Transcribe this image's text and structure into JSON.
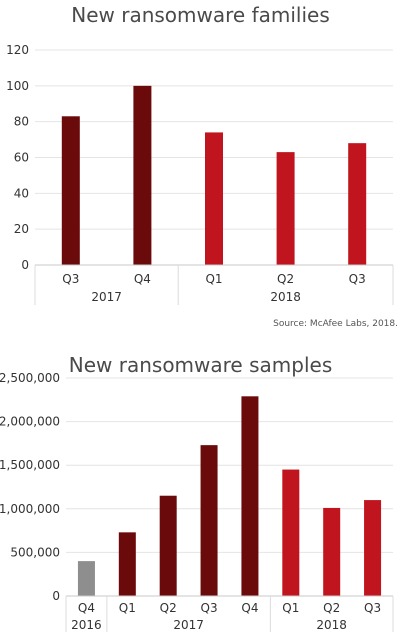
{
  "chart_data": [
    {
      "type": "bar",
      "title": "New ransomware families",
      "xlabel": "",
      "ylabel": "",
      "ylim": [
        0,
        120
      ],
      "yticks": [
        0,
        20,
        40,
        60,
        80,
        100,
        120
      ],
      "grid": true,
      "categories": [
        "Q3",
        "Q4",
        "Q1",
        "Q2",
        "Q3"
      ],
      "years": [
        "2017",
        "2017",
        "2018",
        "2018",
        "2018"
      ],
      "year_groups": [
        {
          "label": "2017",
          "count": 2
        },
        {
          "label": "2018",
          "count": 3
        }
      ],
      "values": [
        83,
        100,
        74,
        63,
        68
      ],
      "colors": [
        "#6b0a0a",
        "#6b0a0a",
        "#c0141e",
        "#c0141e",
        "#c0141e"
      ],
      "source": "Source: McAfee Labs, 2018."
    },
    {
      "type": "bar",
      "title": "New ransomware samples",
      "xlabel": "",
      "ylabel": "",
      "ylim": [
        0,
        2500000
      ],
      "yticks": [
        0,
        500000,
        1000000,
        1500000,
        2000000,
        2500000
      ],
      "ytick_labels": [
        "0",
        "500,000",
        "1,000,000",
        "1,500,000",
        "2,000,000",
        "2,500,000"
      ],
      "grid": true,
      "categories": [
        "Q4",
        "Q1",
        "Q2",
        "Q3",
        "Q4",
        "Q1",
        "Q2",
        "Q3"
      ],
      "years": [
        "2016",
        "2017",
        "2017",
        "2017",
        "2017",
        "2018",
        "2018",
        "2018"
      ],
      "year_groups": [
        {
          "label": "2016",
          "count": 1
        },
        {
          "label": "2017",
          "count": 4
        },
        {
          "label": "2018",
          "count": 3
        }
      ],
      "values": [
        400000,
        730000,
        1150000,
        1730000,
        2290000,
        1450000,
        1010000,
        1100000
      ],
      "colors": [
        "#8e8e8e",
        "#6b0a0a",
        "#6b0a0a",
        "#6b0a0a",
        "#6b0a0a",
        "#c0141e",
        "#c0141e",
        "#c0141e"
      ]
    }
  ]
}
